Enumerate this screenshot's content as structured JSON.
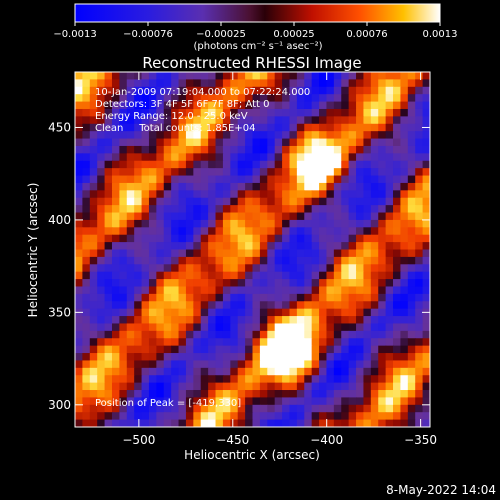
{
  "colorbar": {
    "ticks": [
      "-0.0013",
      "-0.00076",
      "-0.00025",
      "0.00025",
      "0.00076",
      "0.0013"
    ],
    "units": "(photons cm⁻² s⁻¹ asec⁻²)"
  },
  "chart_data": {
    "type": "heatmap",
    "title": "Reconstructed RHESSI Image",
    "xlabel": "Heliocentric X (arcsec)",
    "ylabel": "Heliocentric Y (arcsec)",
    "xlim": [
      -534,
      -345
    ],
    "ylim": [
      288,
      480
    ],
    "xticks": [
      -500,
      -450,
      -400,
      -350
    ],
    "xtick_labels": [
      "−500",
      "−450",
      "−400",
      "−350"
    ],
    "yticks": [
      300,
      350,
      400,
      450
    ],
    "ytick_labels": [
      "300",
      "350",
      "400",
      "450"
    ],
    "value_range": [
      -0.0013,
      0.0013
    ],
    "colormap": "rhessi-blue-purple-red-yellow-white",
    "peak": [
      -419,
      330
    ],
    "grid": false,
    "annotations": {
      "time": "10-Jan-2009 07:19:04.000 to 07:22:24.000",
      "detectors": "Detectors: 3F 4F 5F 6F 7F 8F; Att 0",
      "energy": "Energy Range: 12.0 - 25.0 keV",
      "clean": "Clean     Total counts: 1.85E+04",
      "peak": "Position of Peak = [-419,330]"
    }
  },
  "footer": {
    "date": "8-May-2022 14:04"
  }
}
